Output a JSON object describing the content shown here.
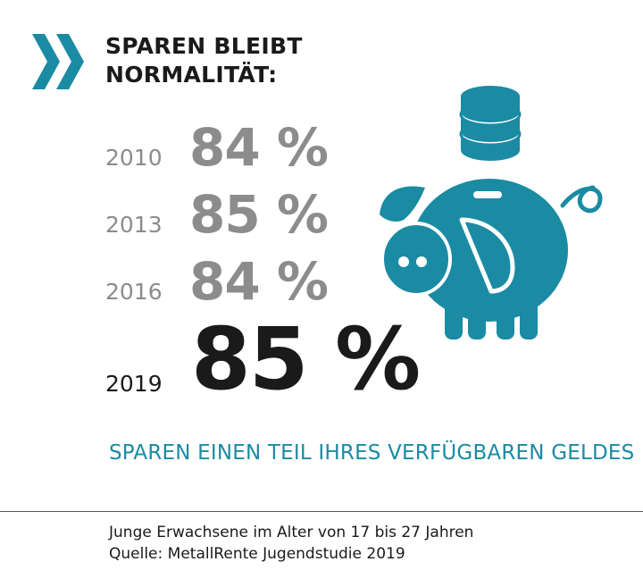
{
  "title_lines": [
    "SPAREN BLEIBT",
    "NORMALITÄT:"
  ],
  "subtitle": "SPAREN EINEN TEIL IHRES VERFÜGBAREN GELDES",
  "footer": {
    "population": "Junge Erwachsene im Alter von 17 bis 27 Jahren",
    "source": "Quelle: MetallRente Jugendstudie 2019"
  },
  "colors": {
    "accent": "#1a8ba3",
    "past": "#8c8c8c",
    "current": "#1a1a1a"
  },
  "icons": [
    "double-chevron-right-icon",
    "piggy-bank-icon",
    "coin-stack-icon"
  ],
  "chart_data": {
    "type": "table",
    "categories": [
      "2010",
      "2013",
      "2016",
      "2019"
    ],
    "values": [
      84,
      85,
      84,
      85
    ],
    "labels": [
      "84 %",
      "85 %",
      "84 %",
      "85 %"
    ],
    "highlighted": "2019"
  }
}
